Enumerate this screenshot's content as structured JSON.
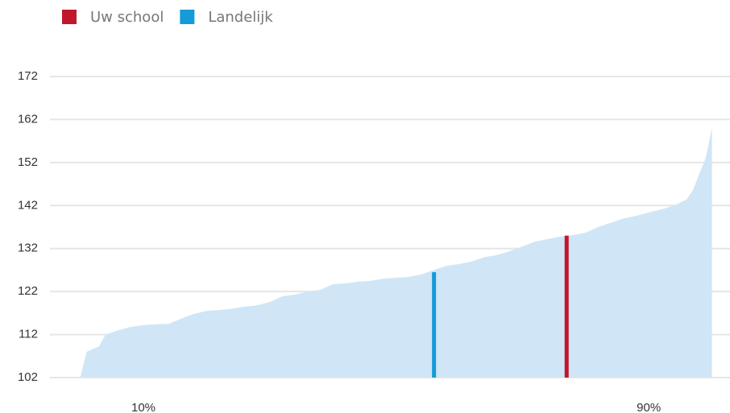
{
  "chart_data": {
    "type": "area",
    "color": "#d0e6f6",
    "x": [
      0,
      1,
      3,
      4,
      6,
      8,
      10,
      12,
      14,
      16,
      18,
      20,
      22,
      24,
      26,
      28,
      30,
      32,
      34,
      36,
      38,
      40,
      42,
      44,
      46,
      48,
      50,
      52,
      54,
      56,
      58,
      60,
      62,
      64,
      66,
      68,
      70,
      72,
      74,
      76,
      78,
      80,
      82,
      84,
      86,
      88,
      90,
      92,
      94,
      96,
      97,
      98,
      99,
      100
    ],
    "values": [
      102,
      108,
      109.3,
      112,
      113,
      113.8,
      114.2,
      114.4,
      114.5,
      115.7,
      116.8,
      117.5,
      117.7,
      118,
      118.5,
      118.8,
      119.6,
      120.9,
      121.3,
      122,
      122.4,
      123.7,
      123.9,
      124.3,
      124.5,
      125,
      125.2,
      125.4,
      126,
      127,
      128,
      128.4,
      129,
      130,
      130.5,
      131.4,
      132.5,
      133.6,
      134.2,
      134.8,
      135.1,
      135.7,
      137,
      138,
      139,
      139.6,
      140.4,
      141.1,
      142,
      143.4,
      145.6,
      149.4,
      153,
      160
    ],
    "markers": [
      {
        "name": "Uw school",
        "color": "#c0182a",
        "x": 77,
        "value": 135
      },
      {
        "name": "Landelijk",
        "color": "#159bd7",
        "x": 56,
        "value": 126.5
      }
    ],
    "xlim": [
      0,
      100
    ],
    "xticks": [
      {
        "value": 10,
        "label": "10%"
      },
      {
        "value": 90,
        "label": "90%"
      }
    ],
    "ylim": [
      102,
      172
    ],
    "yticks": [
      102,
      112,
      122,
      132,
      142,
      152,
      162,
      172
    ],
    "grid": true
  }
}
